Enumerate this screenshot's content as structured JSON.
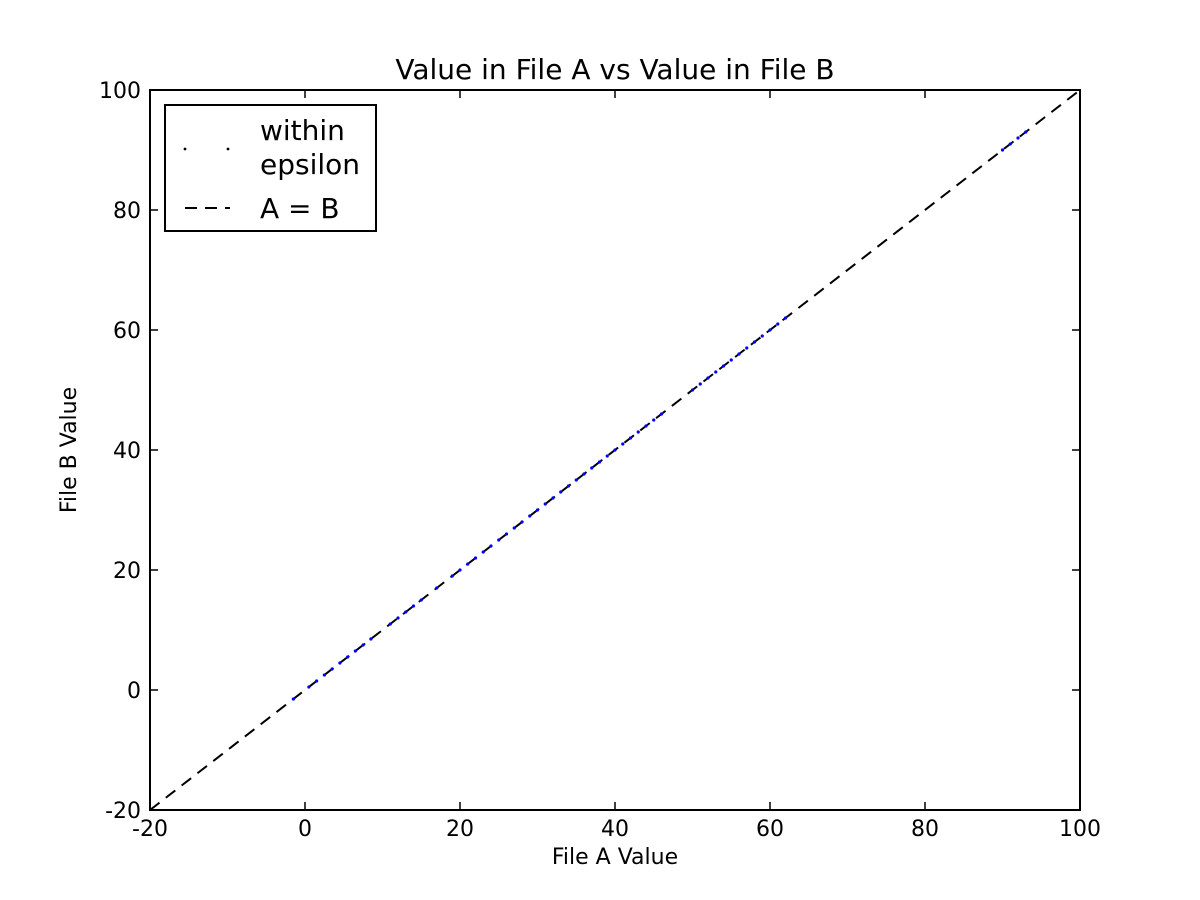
{
  "chart_data": {
    "type": "scatter",
    "title": "Value in File A vs Value in File B",
    "xlabel": "File A Value",
    "ylabel": "File B Value",
    "xlim": [
      -20,
      100
    ],
    "ylim": [
      -20,
      100
    ],
    "xticks": [
      "-20",
      "0",
      "20",
      "40",
      "60",
      "80",
      "100"
    ],
    "yticks": [
      "-20",
      "0",
      "20",
      "40",
      "60",
      "80",
      "100"
    ],
    "grid": false,
    "legend_position": "top-left",
    "legend": [
      {
        "label_lines": [
          "within",
          "epsilon"
        ],
        "style": "points",
        "color": "#0000ff"
      },
      {
        "label_lines": [
          "A = B"
        ],
        "style": "dashed-line",
        "color": "#000000"
      }
    ],
    "series": [
      {
        "name": "within epsilon",
        "color": "#0000ff",
        "x": [
          -1.5,
          0.5,
          1.5,
          2.5,
          3.5,
          4.5,
          5.5,
          6.5,
          7.5,
          8.5,
          11,
          12,
          13,
          14,
          15,
          17,
          19,
          20,
          21,
          22,
          23,
          24,
          25,
          26,
          27,
          28,
          29,
          30,
          31,
          32,
          33,
          34,
          35,
          36,
          37,
          38,
          39,
          40,
          41,
          42,
          43,
          44,
          45,
          46,
          50,
          51,
          52,
          53,
          54,
          55,
          56,
          57,
          58,
          59,
          60,
          61,
          62,
          90,
          91,
          92,
          93
        ],
        "y": [
          -1.5,
          0.5,
          1.5,
          2.5,
          3.5,
          4.5,
          5.5,
          6.5,
          7.5,
          8.5,
          11,
          12,
          13,
          14,
          15,
          17,
          19,
          20,
          21,
          22,
          23,
          24,
          25,
          26,
          27,
          28,
          29,
          30,
          31,
          32,
          33,
          34,
          35,
          36,
          37,
          38,
          39,
          40,
          41,
          42,
          43,
          44,
          45,
          46,
          50,
          51,
          52,
          53,
          54,
          55,
          56,
          57,
          58,
          59,
          60,
          61,
          62,
          90,
          91,
          92,
          93
        ]
      },
      {
        "name": "A = B",
        "color": "#000000",
        "dash": true,
        "x": [
          -20,
          100
        ],
        "y": [
          -20,
          100
        ]
      }
    ]
  }
}
